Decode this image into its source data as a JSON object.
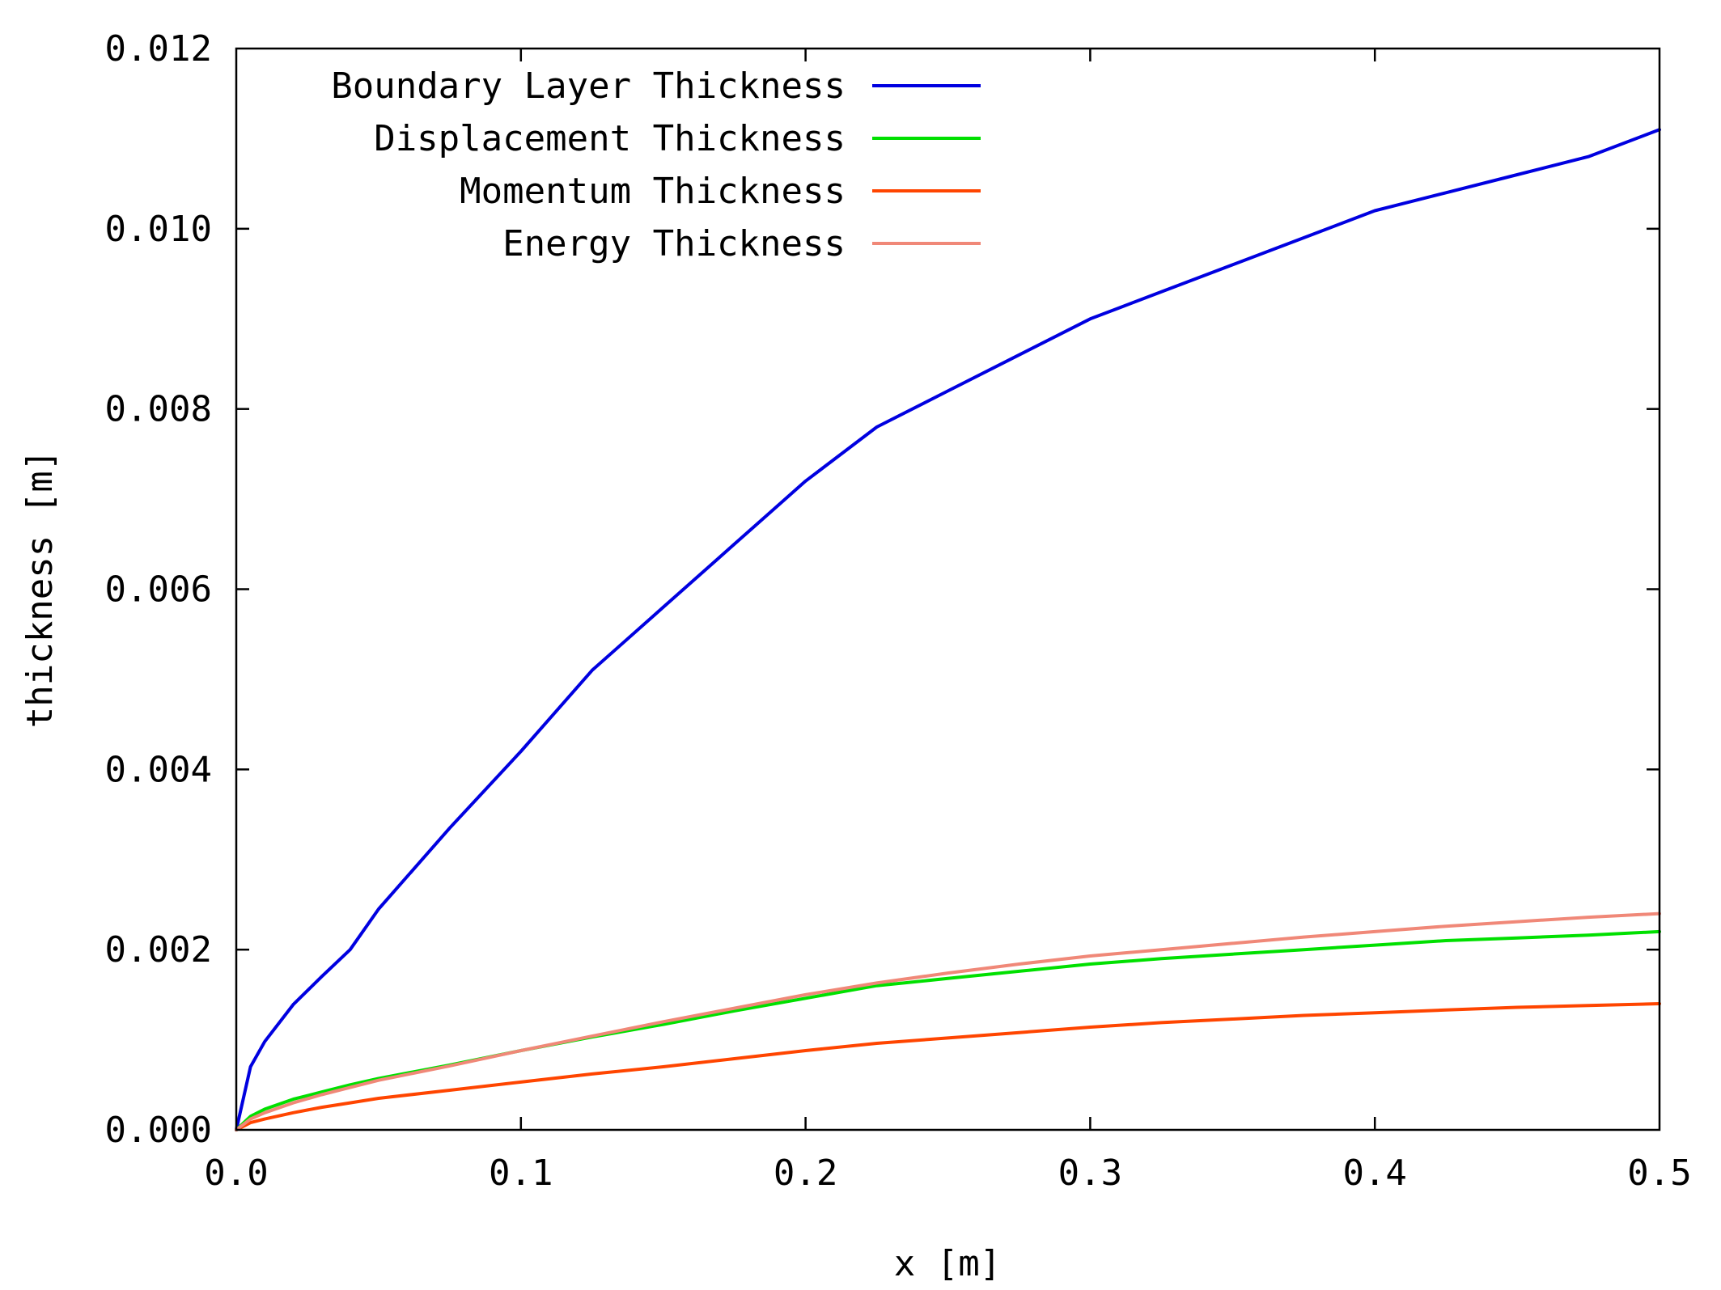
{
  "chart_data": {
    "type": "line",
    "title": "",
    "xlabel": "x [m]",
    "ylabel": "thickness [m]",
    "xlim": [
      0.0,
      0.5
    ],
    "ylim": [
      0.0,
      0.012
    ],
    "grid": false,
    "legend_position": "top-left",
    "x_ticks": [
      {
        "value": 0.0,
        "label": "0.0"
      },
      {
        "value": 0.1,
        "label": "0.1"
      },
      {
        "value": 0.2,
        "label": "0.2"
      },
      {
        "value": 0.3,
        "label": "0.3"
      },
      {
        "value": 0.4,
        "label": "0.4"
      },
      {
        "value": 0.5,
        "label": "0.5"
      }
    ],
    "y_ticks": [
      {
        "value": 0.0,
        "label": "0.000"
      },
      {
        "value": 0.002,
        "label": "0.002"
      },
      {
        "value": 0.004,
        "label": "0.004"
      },
      {
        "value": 0.006,
        "label": "0.006"
      },
      {
        "value": 0.008,
        "label": "0.008"
      },
      {
        "value": 0.01,
        "label": "0.010"
      },
      {
        "value": 0.012,
        "label": "0.012"
      }
    ],
    "series": [
      {
        "name": "Boundary Layer Thickness",
        "color": "#0000e0",
        "x": [
          0.0,
          0.005,
          0.01,
          0.02,
          0.03,
          0.04,
          0.05,
          0.075,
          0.1,
          0.125,
          0.15,
          0.175,
          0.2,
          0.225,
          0.25,
          0.275,
          0.3,
          0.325,
          0.35,
          0.375,
          0.4,
          0.425,
          0.45,
          0.475,
          0.5
        ],
        "y": [
          0.0,
          0.0007,
          0.00098,
          0.00139,
          0.0017,
          0.002,
          0.00245,
          0.00335,
          0.0042,
          0.0051,
          0.0058,
          0.0065,
          0.0072,
          0.0078,
          0.0082,
          0.0086,
          0.009,
          0.0093,
          0.0096,
          0.0099,
          0.0102,
          0.0104,
          0.0106,
          0.0108,
          0.0111
        ]
      },
      {
        "name": "Displacement Thickness",
        "color": "#00e000",
        "x": [
          0.0,
          0.005,
          0.01,
          0.02,
          0.03,
          0.04,
          0.05,
          0.075,
          0.1,
          0.125,
          0.15,
          0.175,
          0.2,
          0.225,
          0.25,
          0.275,
          0.3,
          0.325,
          0.35,
          0.375,
          0.4,
          0.425,
          0.45,
          0.475,
          0.5
        ],
        "y": [
          0.0,
          0.00015,
          0.00023,
          0.00034,
          0.00042,
          0.0005,
          0.00057,
          0.00072,
          0.00088,
          0.00103,
          0.00117,
          0.00132,
          0.00146,
          0.0016,
          0.00168,
          0.00176,
          0.00184,
          0.0019,
          0.00195,
          0.002,
          0.00205,
          0.0021,
          0.00213,
          0.00216,
          0.0022
        ]
      },
      {
        "name": "Momentum Thickness",
        "color": "#ff4500",
        "x": [
          0.0,
          0.005,
          0.01,
          0.02,
          0.03,
          0.04,
          0.05,
          0.075,
          0.1,
          0.125,
          0.15,
          0.175,
          0.2,
          0.225,
          0.25,
          0.275,
          0.3,
          0.325,
          0.35,
          0.375,
          0.4,
          0.425,
          0.45,
          0.475,
          0.5
        ],
        "y": [
          0.0,
          8e-05,
          0.00012,
          0.00019,
          0.00025,
          0.0003,
          0.00035,
          0.00044,
          0.00053,
          0.00062,
          0.0007,
          0.00079,
          0.00088,
          0.00096,
          0.00102,
          0.00108,
          0.00114,
          0.00119,
          0.00123,
          0.00127,
          0.0013,
          0.00133,
          0.00136,
          0.00138,
          0.0014
        ]
      },
      {
        "name": "Energy Thickness",
        "color": "#f08878",
        "x": [
          0.0,
          0.005,
          0.01,
          0.02,
          0.03,
          0.04,
          0.05,
          0.075,
          0.1,
          0.125,
          0.15,
          0.175,
          0.2,
          0.225,
          0.25,
          0.275,
          0.3,
          0.325,
          0.35,
          0.375,
          0.4,
          0.425,
          0.45,
          0.475,
          0.5
        ],
        "y": [
          0.0,
          0.00012,
          0.00019,
          0.0003,
          0.00039,
          0.00047,
          0.00055,
          0.00071,
          0.00088,
          0.00104,
          0.0012,
          0.00135,
          0.0015,
          0.00163,
          0.00174,
          0.00184,
          0.00193,
          0.002,
          0.00207,
          0.00214,
          0.0022,
          0.00226,
          0.00231,
          0.00236,
          0.0024
        ]
      }
    ]
  }
}
